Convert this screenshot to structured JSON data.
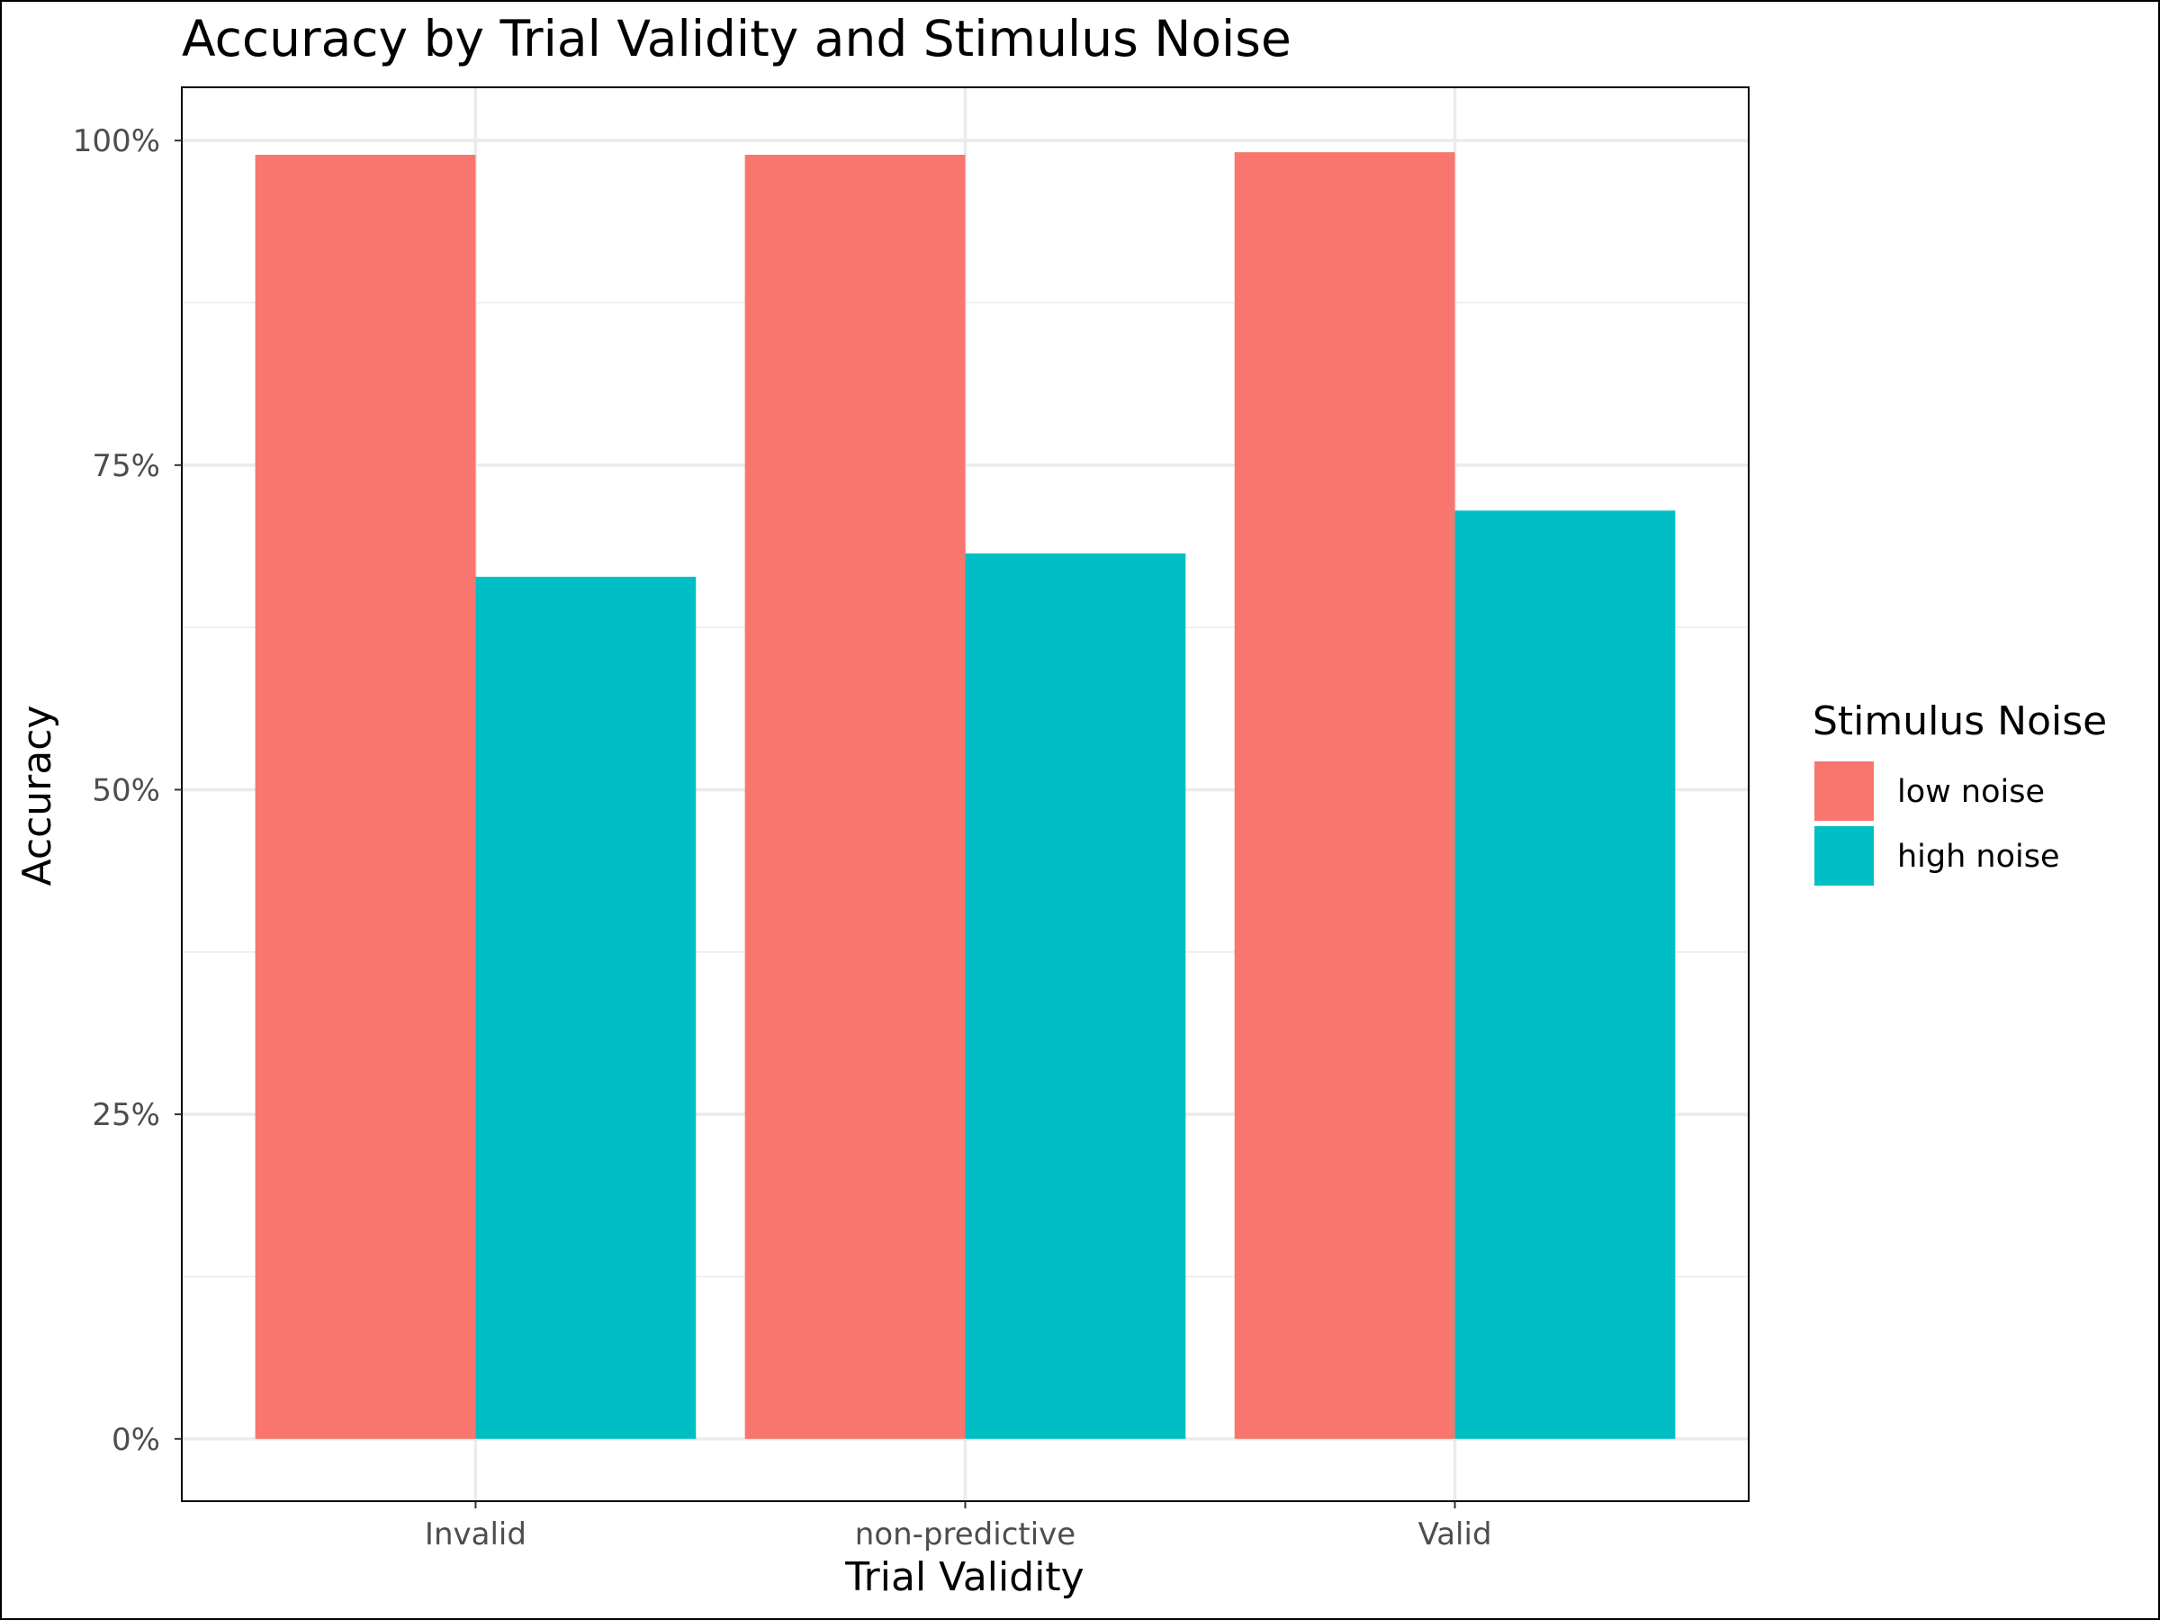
{
  "chart_data": {
    "type": "bar",
    "title": "Accuracy by Trial Validity and Stimulus Noise",
    "xlabel": "Trial Validity",
    "ylabel": "Accuracy",
    "categories": [
      "Invalid",
      "non-predictive",
      "Valid"
    ],
    "series": [
      {
        "name": "low noise",
        "color": "#F8766D",
        "values": [
          0.989,
          0.989,
          0.991
        ]
      },
      {
        "name": "high noise",
        "color": "#00BFC4",
        "values": [
          0.664,
          0.682,
          0.715
        ]
      }
    ],
    "ylim": [
      -0.048,
      1.041
    ],
    "yticks": [
      0,
      0.25,
      0.5,
      0.75,
      1.0
    ],
    "ytick_labels": [
      "0%",
      "25%",
      "50%",
      "75%",
      "100%"
    ],
    "grid": true,
    "legend": {
      "title": "Stimulus Noise",
      "position": "right"
    }
  }
}
